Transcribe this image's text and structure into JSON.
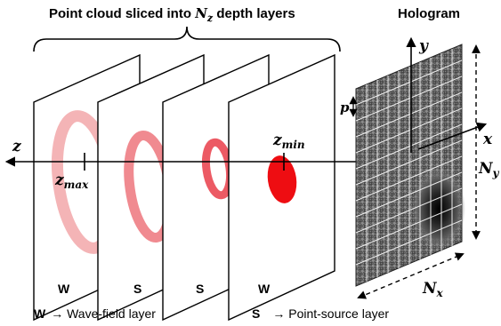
{
  "title_prefix": "Point cloud sliced into ",
  "title_var": "N",
  "title_var_sub": "z",
  "title_suffix": " depth layers",
  "hologram_title": "Hologram",
  "layer_labels": [
    "W",
    "S",
    "S",
    "W"
  ],
  "axis": {
    "z": "z",
    "x": "x",
    "y": "y",
    "zmax_main": "z",
    "zmax_sub": "max",
    "zmin_main": "z",
    "zmin_sub": "min",
    "p": "p",
    "nx_main": "N",
    "nx_sub": "x",
    "ny_main": "N",
    "ny_sub": "y"
  },
  "legend": {
    "w_key": "W",
    "w_text": "→ Wave-field layer",
    "s_key": "S",
    "s_text": "→ Point-source layer"
  },
  "colors": {
    "ring_light": "#f4b4b6",
    "ring_mid": "#f08a90",
    "ring_dark": "#ec5a64",
    "disk": "#ee0d12"
  }
}
